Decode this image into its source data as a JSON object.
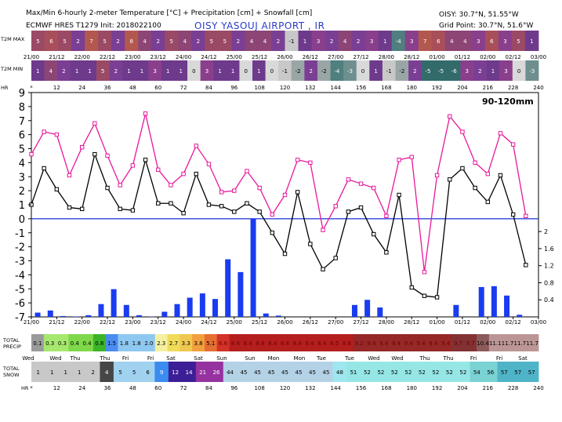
{
  "header": {
    "title": "Max/Min 6-hourly 2-meter Temperature [°C] + Precipitation [cm] + Snowfall [cm]",
    "model": "ECMWF HRES T1279 Init: 2018022100",
    "location": "OISY YASOUJ AIRPORT , IR",
    "station_coords": "OISY: 30.7°N, 51.55°W",
    "grid_point": "Grid Point: 30.7°N, 51.6°W"
  },
  "row_labels": {
    "t2m_max": "T2M MAX",
    "t2m_min": "T2M MIN",
    "hr": "HR",
    "total_precip": [
      "TOTAL",
      "PRECIP"
    ],
    "total_snow": [
      "TOTAL",
      "SNOW"
    ]
  },
  "date_labels": [
    "21/00",
    "21/12",
    "22/00",
    "22/12",
    "23/00",
    "23/12",
    "24/00",
    "24/12",
    "25/00",
    "25/12",
    "26/00",
    "26/12",
    "27/00",
    "27/12",
    "28/00",
    "28/12",
    "01/00",
    "01/12",
    "02/00",
    "02/12",
    "03/00"
  ],
  "day_labels": [
    {
      "x": 36,
      "text": "Wed"
    },
    {
      "x": 71,
      "text": "Wed"
    },
    {
      "x": 96,
      "text": "Thu"
    },
    {
      "x": 134,
      "text": "Thu"
    },
    {
      "x": 160,
      "text": "Fri"
    },
    {
      "x": 192,
      "text": "Fri"
    },
    {
      "x": 218,
      "text": "Sat"
    },
    {
      "x": 253,
      "text": "Sat"
    },
    {
      "x": 283,
      "text": "Sun"
    },
    {
      "x": 319,
      "text": "Sun"
    },
    {
      "x": 349,
      "text": "Mon"
    },
    {
      "x": 382,
      "text": "Mon"
    },
    {
      "x": 410,
      "text": "Tue"
    },
    {
      "x": 446,
      "text": "Tue"
    },
    {
      "x": 477,
      "text": "Wed"
    },
    {
      "x": 507,
      "text": "Wed"
    },
    {
      "x": 542,
      "text": "Thu"
    },
    {
      "x": 572,
      "text": "Thu"
    },
    {
      "x": 604,
      "text": "Fri"
    },
    {
      "x": 637,
      "text": "Fri"
    },
    {
      "x": 667,
      "text": "Sat"
    }
  ],
  "hr_labels": [
    "*",
    "12",
    "24",
    "36",
    "48",
    "60",
    "72",
    "84",
    "96",
    "108",
    "120",
    "132",
    "144",
    "156",
    "168",
    "180",
    "192",
    "204",
    "216",
    "228",
    "240"
  ],
  "annotation": "90-120mm",
  "t2m_max_row": [
    "5",
    "6",
    "5",
    "2",
    "7",
    "5",
    "2",
    "8",
    "4",
    "2",
    "5",
    "4",
    "2",
    "5",
    "5",
    "2",
    "4",
    "4",
    "2",
    "-1",
    "1",
    "3",
    "2",
    "4",
    "2",
    "3",
    "1",
    "-4",
    "3",
    "7",
    "6",
    "4",
    "4",
    "3",
    "6",
    "3",
    "5",
    "1"
  ],
  "t2m_min_row": [
    "1",
    "4",
    "2",
    "1",
    "1",
    "5",
    "2",
    "1",
    "1",
    "3",
    "1",
    "1",
    "0",
    "3",
    "1",
    "1",
    "0",
    "1",
    "0",
    "-1",
    "-2",
    "2",
    "-2",
    "-4",
    "-3",
    "0",
    "1",
    "-1",
    "-2",
    "2",
    "-5",
    "-5",
    "-6",
    "3",
    "2",
    "1",
    "3",
    "0",
    "-3"
  ],
  "precip_row": [
    "0.1",
    "0.3",
    "0.3",
    "0.4",
    "0.4",
    "0.8",
    "1.5",
    "1.8",
    "1.8",
    "2.0",
    "2.3",
    "2.7",
    "3.3",
    "3.8",
    "5.1",
    "6.6",
    "8.4",
    "8.4",
    "8.4",
    "8.4",
    "8.4",
    "8.4",
    "8.4",
    "8.4",
    "8.5",
    "8.6",
    "9.2",
    "9.4",
    "9.4",
    "9.4",
    "9.4",
    "9.4",
    "9.4",
    "9.4",
    "9.7",
    "9.7",
    "10.4",
    "11.1",
    "11.7",
    "11.7",
    "11.7"
  ],
  "snow_row": [
    "1",
    "1",
    "1",
    "1",
    "2",
    "4",
    "5",
    "5",
    "6",
    "9",
    "12",
    "14",
    "21",
    "26",
    "44",
    "45",
    "45",
    "45",
    "45",
    "45",
    "45",
    "45",
    "48",
    "51",
    "52",
    "52",
    "52",
    "52",
    "52",
    "52",
    "52",
    "52",
    "54",
    "56",
    "57",
    "57",
    "57"
  ],
  "chart_data": {
    "type": "line",
    "title": "",
    "xlabel": "",
    "ylabel": "",
    "ylim": [
      -7,
      9
    ],
    "y2lim": [
      0,
      2.3
    ],
    "x_ticks_hours": [
      0,
      12,
      24,
      36,
      48,
      60,
      72,
      84,
      96,
      108,
      120,
      132,
      144,
      156,
      168,
      180,
      192,
      204,
      216,
      228,
      240
    ],
    "y_ticks": [
      -7,
      -6,
      -5,
      -4,
      -3,
      -2,
      -1,
      0,
      1,
      2,
      3,
      4,
      5,
      6,
      7,
      8,
      9
    ],
    "y2_ticks": [
      0.4,
      0.8,
      1.2,
      1.6,
      2
    ],
    "grid": false,
    "series": [
      {
        "name": "T2M MAX",
        "color": "#e8189c",
        "x": [
          0,
          6,
          12,
          18,
          24,
          30,
          36,
          42,
          48,
          54,
          60,
          66,
          72,
          78,
          84,
          90,
          96,
          102,
          108,
          114,
          120,
          126,
          132,
          138,
          144,
          150,
          156,
          162,
          168,
          174,
          180,
          186,
          192,
          198,
          204,
          210,
          216,
          222,
          228,
          234,
          240
        ],
        "values": [
          4.6,
          6.2,
          6.0,
          3.1,
          5.1,
          6.8,
          4.5,
          2.4,
          3.8,
          7.5,
          3.5,
          2.4,
          3.2,
          5.2,
          3.9,
          1.9,
          2.0,
          3.4,
          2.2,
          0.3,
          1.7,
          4.2,
          4.0,
          -0.8,
          0.9,
          2.8,
          2.5,
          2.2,
          0.2,
          4.2,
          4.4,
          -3.8,
          3.1,
          7.3,
          6.2,
          4.0,
          3.2,
          6.1,
          5.3,
          0.2,
          null
        ]
      },
      {
        "name": "T2M MIN",
        "color": "#000000",
        "x": [
          0,
          6,
          12,
          18,
          24,
          30,
          36,
          42,
          48,
          54,
          60,
          66,
          72,
          78,
          84,
          90,
          96,
          102,
          108,
          114,
          120,
          126,
          132,
          138,
          144,
          150,
          156,
          162,
          168,
          174,
          180,
          186,
          192,
          198,
          204,
          210,
          216,
          222,
          228,
          234,
          240
        ],
        "values": [
          1.0,
          3.6,
          2.1,
          0.8,
          0.7,
          4.6,
          2.2,
          0.7,
          0.6,
          4.2,
          1.1,
          1.1,
          0.4,
          3.2,
          1.0,
          0.9,
          0.5,
          1.1,
          0.5,
          -1.0,
          -2.5,
          1.9,
          -1.8,
          -3.6,
          -2.8,
          0.5,
          0.8,
          -1.1,
          -2.4,
          1.7,
          -4.9,
          -5.5,
          -5.6,
          2.8,
          3.6,
          2.2,
          1.2,
          3.1,
          0.3,
          -3.3,
          null
        ]
      },
      {
        "name": "Precipitation",
        "color": "#1a3cf0",
        "type": "bar",
        "axis": "y2",
        "x": [
          3,
          9,
          15,
          21,
          27,
          33,
          39,
          45,
          51,
          57,
          63,
          69,
          75,
          81,
          87,
          93,
          99,
          105,
          111,
          117,
          123,
          129,
          135,
          141,
          147,
          153,
          159,
          165,
          171,
          177,
          183,
          189,
          195,
          201,
          207,
          213,
          219,
          225,
          231,
          237
        ],
        "values": [
          0.1,
          0.15,
          0.02,
          0.01,
          0.04,
          0.3,
          0.65,
          0.28,
          0.04,
          0.01,
          0.12,
          0.3,
          0.45,
          0.55,
          0.42,
          1.35,
          1.05,
          2.3,
          0.08,
          0.03,
          0.0,
          0.0,
          0.0,
          0.0,
          0.0,
          0.28,
          0.4,
          0.22,
          0.0,
          0.0,
          0.0,
          0.0,
          0.0,
          0.28,
          0.0,
          0.7,
          0.72,
          0.5,
          0.05,
          0.0
        ]
      }
    ]
  }
}
